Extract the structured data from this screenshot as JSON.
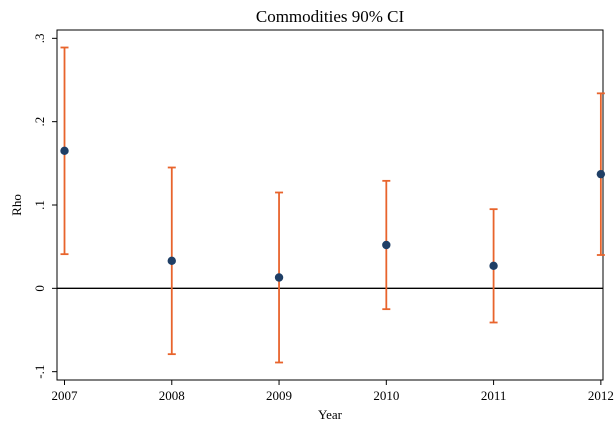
{
  "chart_data": {
    "type": "errorbar",
    "title": "Commodities 90% CI",
    "xlabel": "Year",
    "ylabel": "Rho",
    "x": [
      2007,
      2008,
      2009,
      2010,
      2011,
      2012
    ],
    "values": [
      0.165,
      0.033,
      0.013,
      0.052,
      0.027,
      0.137
    ],
    "errors": [
      0.124,
      0.112,
      0.102,
      0.077,
      0.068,
      0.097
    ],
    "color": "#1f3f66",
    "error_color": "#e8642c",
    "hline": 0,
    "xlim": [
      2006.93,
      2012.02
    ],
    "xticks": [
      2007,
      2008,
      2009,
      2010,
      2011,
      2012
    ],
    "ylim": [
      -0.11,
      0.31
    ],
    "yticks": [
      {
        "value": -0.1,
        "label": "-.1"
      },
      {
        "value": 0,
        "label": "0"
      },
      {
        "value": 0.1,
        "label": ".1"
      },
      {
        "value": 0.2,
        "label": ".2"
      },
      {
        "value": 0.3,
        "label": ".3"
      }
    ]
  }
}
